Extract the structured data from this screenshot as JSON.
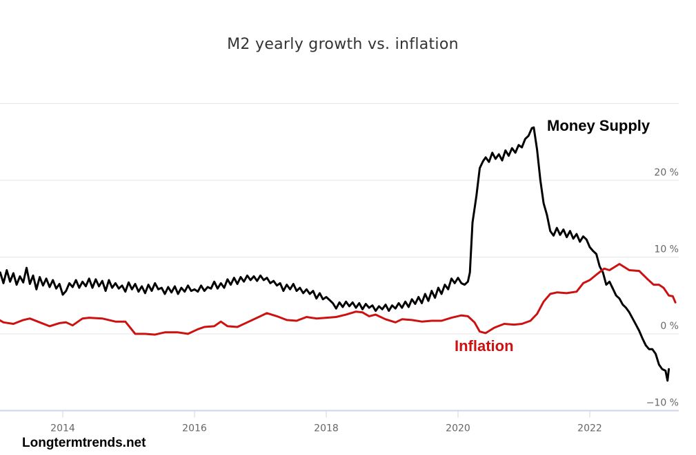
{
  "chart_data": {
    "type": "line",
    "title": "M2 yearly growth vs. inflation",
    "xlabel": "",
    "ylabel": "",
    "x_ticks": [
      "2014",
      "2016",
      "2018",
      "2020",
      "2022"
    ],
    "y_ticks": [
      "-10 %",
      "0 %",
      "10 %",
      "20 %"
    ],
    "xlim": [
      2013.0,
      2023.3
    ],
    "ylim": [
      -10,
      30
    ],
    "grid": true,
    "y_axis_side": "right",
    "annotations": [
      {
        "text": "Money Supply",
        "color": "#000000",
        "series": "Money Supply"
      },
      {
        "text": "Inflation",
        "color": "#cc1111",
        "series": "Inflation"
      }
    ],
    "credit": "Longtermtrends.net",
    "series": [
      {
        "name": "Money Supply",
        "color": "#000000",
        "points": [
          [
            2013.0,
            7.2
          ],
          [
            2013.05,
            8.0
          ],
          [
            2013.1,
            6.6
          ],
          [
            2013.15,
            8.3
          ],
          [
            2013.2,
            6.8
          ],
          [
            2013.25,
            7.9
          ],
          [
            2013.3,
            6.4
          ],
          [
            2013.35,
            7.5
          ],
          [
            2013.4,
            6.7
          ],
          [
            2013.45,
            8.6
          ],
          [
            2013.5,
            6.5
          ],
          [
            2013.55,
            7.6
          ],
          [
            2013.6,
            5.8
          ],
          [
            2013.65,
            7.4
          ],
          [
            2013.7,
            6.3
          ],
          [
            2013.75,
            7.2
          ],
          [
            2013.8,
            6.1
          ],
          [
            2013.85,
            7.0
          ],
          [
            2013.9,
            5.9
          ],
          [
            2013.95,
            6.5
          ],
          [
            2014.0,
            5.1
          ],
          [
            2014.05,
            5.6
          ],
          [
            2014.1,
            6.6
          ],
          [
            2014.15,
            6.1
          ],
          [
            2014.2,
            7.0
          ],
          [
            2014.25,
            6.0
          ],
          [
            2014.3,
            6.8
          ],
          [
            2014.35,
            6.2
          ],
          [
            2014.4,
            7.2
          ],
          [
            2014.45,
            6.0
          ],
          [
            2014.5,
            7.1
          ],
          [
            2014.55,
            6.2
          ],
          [
            2014.6,
            6.9
          ],
          [
            2014.65,
            5.6
          ],
          [
            2014.7,
            7.0
          ],
          [
            2014.75,
            6.0
          ],
          [
            2014.8,
            6.6
          ],
          [
            2014.85,
            5.9
          ],
          [
            2014.9,
            6.3
          ],
          [
            2014.95,
            5.5
          ],
          [
            2015.0,
            6.7
          ],
          [
            2015.05,
            5.8
          ],
          [
            2015.1,
            6.5
          ],
          [
            2015.15,
            5.5
          ],
          [
            2015.2,
            6.2
          ],
          [
            2015.25,
            5.3
          ],
          [
            2015.3,
            6.4
          ],
          [
            2015.35,
            5.6
          ],
          [
            2015.4,
            6.6
          ],
          [
            2015.45,
            5.8
          ],
          [
            2015.5,
            6.0
          ],
          [
            2015.55,
            5.2
          ],
          [
            2015.6,
            6.1
          ],
          [
            2015.65,
            5.4
          ],
          [
            2015.7,
            6.2
          ],
          [
            2015.75,
            5.2
          ],
          [
            2015.8,
            6.0
          ],
          [
            2015.85,
            5.5
          ],
          [
            2015.9,
            6.3
          ],
          [
            2015.95,
            5.6
          ],
          [
            2016.0,
            5.8
          ],
          [
            2016.05,
            5.5
          ],
          [
            2016.1,
            6.3
          ],
          [
            2016.15,
            5.6
          ],
          [
            2016.2,
            6.1
          ],
          [
            2016.25,
            5.9
          ],
          [
            2016.3,
            6.8
          ],
          [
            2016.35,
            5.9
          ],
          [
            2016.4,
            6.6
          ],
          [
            2016.45,
            6.0
          ],
          [
            2016.5,
            7.1
          ],
          [
            2016.55,
            6.4
          ],
          [
            2016.6,
            7.3
          ],
          [
            2016.65,
            6.5
          ],
          [
            2016.7,
            7.4
          ],
          [
            2016.75,
            6.8
          ],
          [
            2016.8,
            7.6
          ],
          [
            2016.85,
            7.0
          ],
          [
            2016.9,
            7.5
          ],
          [
            2016.95,
            6.9
          ],
          [
            2017.0,
            7.6
          ],
          [
            2017.05,
            7.0
          ],
          [
            2017.1,
            7.3
          ],
          [
            2017.15,
            6.6
          ],
          [
            2017.2,
            6.9
          ],
          [
            2017.25,
            6.3
          ],
          [
            2017.3,
            6.6
          ],
          [
            2017.35,
            5.6
          ],
          [
            2017.4,
            6.4
          ],
          [
            2017.45,
            5.8
          ],
          [
            2017.5,
            6.5
          ],
          [
            2017.55,
            5.6
          ],
          [
            2017.6,
            6.0
          ],
          [
            2017.65,
            5.3
          ],
          [
            2017.7,
            5.8
          ],
          [
            2017.75,
            5.2
          ],
          [
            2017.8,
            5.6
          ],
          [
            2017.85,
            4.6
          ],
          [
            2017.9,
            5.3
          ],
          [
            2017.95,
            4.5
          ],
          [
            2018.0,
            4.8
          ],
          [
            2018.05,
            4.4
          ],
          [
            2018.1,
            4.0
          ],
          [
            2018.15,
            3.3
          ],
          [
            2018.2,
            4.1
          ],
          [
            2018.25,
            3.5
          ],
          [
            2018.3,
            4.2
          ],
          [
            2018.35,
            3.6
          ],
          [
            2018.4,
            4.1
          ],
          [
            2018.45,
            3.4
          ],
          [
            2018.5,
            4.0
          ],
          [
            2018.55,
            3.2
          ],
          [
            2018.6,
            3.9
          ],
          [
            2018.65,
            3.4
          ],
          [
            2018.7,
            3.7
          ],
          [
            2018.75,
            3.0
          ],
          [
            2018.8,
            3.6
          ],
          [
            2018.85,
            3.2
          ],
          [
            2018.9,
            3.8
          ],
          [
            2018.95,
            3.0
          ],
          [
            2019.0,
            3.7
          ],
          [
            2019.05,
            3.3
          ],
          [
            2019.1,
            4.0
          ],
          [
            2019.15,
            3.4
          ],
          [
            2019.2,
            4.2
          ],
          [
            2019.25,
            3.5
          ],
          [
            2019.3,
            4.5
          ],
          [
            2019.35,
            3.9
          ],
          [
            2019.4,
            4.8
          ],
          [
            2019.45,
            4.0
          ],
          [
            2019.5,
            5.2
          ],
          [
            2019.55,
            4.3
          ],
          [
            2019.6,
            5.6
          ],
          [
            2019.65,
            4.7
          ],
          [
            2019.7,
            6.0
          ],
          [
            2019.75,
            5.2
          ],
          [
            2019.8,
            6.4
          ],
          [
            2019.85,
            5.8
          ],
          [
            2019.9,
            7.2
          ],
          [
            2019.95,
            6.6
          ],
          [
            2020.0,
            7.3
          ],
          [
            2020.05,
            6.6
          ],
          [
            2020.1,
            6.4
          ],
          [
            2020.15,
            6.8
          ],
          [
            2020.18,
            8.0
          ],
          [
            2020.22,
            14.5
          ],
          [
            2020.28,
            18.0
          ],
          [
            2020.33,
            21.6
          ],
          [
            2020.38,
            22.5
          ],
          [
            2020.42,
            23.0
          ],
          [
            2020.47,
            22.4
          ],
          [
            2020.52,
            23.6
          ],
          [
            2020.57,
            22.8
          ],
          [
            2020.62,
            23.4
          ],
          [
            2020.67,
            22.6
          ],
          [
            2020.72,
            23.9
          ],
          [
            2020.77,
            23.2
          ],
          [
            2020.82,
            24.2
          ],
          [
            2020.87,
            23.6
          ],
          [
            2020.92,
            24.6
          ],
          [
            2020.97,
            24.3
          ],
          [
            2021.02,
            25.4
          ],
          [
            2021.07,
            25.8
          ],
          [
            2021.12,
            26.8
          ],
          [
            2021.15,
            26.9
          ],
          [
            2021.2,
            24.0
          ],
          [
            2021.25,
            20.0
          ],
          [
            2021.3,
            17.0
          ],
          [
            2021.35,
            15.5
          ],
          [
            2021.4,
            13.4
          ],
          [
            2021.45,
            12.8
          ],
          [
            2021.5,
            13.8
          ],
          [
            2021.55,
            12.9
          ],
          [
            2021.6,
            13.6
          ],
          [
            2021.65,
            12.6
          ],
          [
            2021.7,
            13.4
          ],
          [
            2021.75,
            12.4
          ],
          [
            2021.8,
            13.0
          ],
          [
            2021.85,
            12.0
          ],
          [
            2021.9,
            12.7
          ],
          [
            2021.95,
            12.3
          ],
          [
            2022.0,
            11.3
          ],
          [
            2022.05,
            10.8
          ],
          [
            2022.1,
            10.4
          ],
          [
            2022.15,
            8.8
          ],
          [
            2022.2,
            8.0
          ],
          [
            2022.25,
            6.4
          ],
          [
            2022.3,
            6.8
          ],
          [
            2022.35,
            5.9
          ],
          [
            2022.4,
            5.0
          ],
          [
            2022.45,
            4.6
          ],
          [
            2022.5,
            3.8
          ],
          [
            2022.55,
            3.4
          ],
          [
            2022.6,
            2.8
          ],
          [
            2022.65,
            2.0
          ],
          [
            2022.7,
            1.2
          ],
          [
            2022.75,
            0.4
          ],
          [
            2022.8,
            -0.6
          ],
          [
            2022.85,
            -1.5
          ],
          [
            2022.9,
            -2.0
          ],
          [
            2022.95,
            -2.0
          ],
          [
            2023.0,
            -2.6
          ],
          [
            2023.05,
            -4.0
          ],
          [
            2023.1,
            -4.6
          ],
          [
            2023.15,
            -4.8
          ],
          [
            2023.18,
            -6.1
          ],
          [
            2023.2,
            -4.6
          ]
        ]
      },
      {
        "name": "Inflation",
        "color": "#cc1111",
        "points": [
          [
            2013.0,
            2.0
          ],
          [
            2013.1,
            1.5
          ],
          [
            2013.25,
            1.3
          ],
          [
            2013.4,
            1.8
          ],
          [
            2013.5,
            2.0
          ],
          [
            2013.65,
            1.5
          ],
          [
            2013.8,
            1.0
          ],
          [
            2013.95,
            1.4
          ],
          [
            2014.05,
            1.5
          ],
          [
            2014.15,
            1.1
          ],
          [
            2014.3,
            2.0
          ],
          [
            2014.4,
            2.1
          ],
          [
            2014.6,
            2.0
          ],
          [
            2014.8,
            1.6
          ],
          [
            2014.95,
            1.6
          ],
          [
            2015.1,
            0.0
          ],
          [
            2015.25,
            0.0
          ],
          [
            2015.4,
            -0.1
          ],
          [
            2015.55,
            0.2
          ],
          [
            2015.75,
            0.2
          ],
          [
            2015.9,
            0.0
          ],
          [
            2016.05,
            0.6
          ],
          [
            2016.15,
            0.9
          ],
          [
            2016.3,
            1.0
          ],
          [
            2016.4,
            1.6
          ],
          [
            2016.5,
            1.0
          ],
          [
            2016.65,
            0.9
          ],
          [
            2016.8,
            1.5
          ],
          [
            2016.95,
            2.1
          ],
          [
            2017.1,
            2.7
          ],
          [
            2017.25,
            2.3
          ],
          [
            2017.4,
            1.8
          ],
          [
            2017.55,
            1.7
          ],
          [
            2017.7,
            2.2
          ],
          [
            2017.85,
            2.0
          ],
          [
            2018.0,
            2.1
          ],
          [
            2018.15,
            2.2
          ],
          [
            2018.3,
            2.5
          ],
          [
            2018.45,
            2.9
          ],
          [
            2018.55,
            2.8
          ],
          [
            2018.65,
            2.3
          ],
          [
            2018.75,
            2.5
          ],
          [
            2018.9,
            1.9
          ],
          [
            2019.05,
            1.5
          ],
          [
            2019.15,
            1.9
          ],
          [
            2019.3,
            1.8
          ],
          [
            2019.45,
            1.6
          ],
          [
            2019.6,
            1.7
          ],
          [
            2019.75,
            1.7
          ],
          [
            2019.9,
            2.1
          ],
          [
            2020.05,
            2.4
          ],
          [
            2020.15,
            2.3
          ],
          [
            2020.25,
            1.5
          ],
          [
            2020.33,
            0.3
          ],
          [
            2020.42,
            0.1
          ],
          [
            2020.55,
            0.8
          ],
          [
            2020.7,
            1.3
          ],
          [
            2020.85,
            1.2
          ],
          [
            2020.97,
            1.3
          ],
          [
            2021.1,
            1.7
          ],
          [
            2021.2,
            2.6
          ],
          [
            2021.3,
            4.2
          ],
          [
            2021.4,
            5.2
          ],
          [
            2021.5,
            5.4
          ],
          [
            2021.65,
            5.3
          ],
          [
            2021.8,
            5.5
          ],
          [
            2021.9,
            6.6
          ],
          [
            2022.0,
            7.0
          ],
          [
            2022.1,
            7.7
          ],
          [
            2022.22,
            8.5
          ],
          [
            2022.3,
            8.3
          ],
          [
            2022.45,
            9.1
          ],
          [
            2022.6,
            8.3
          ],
          [
            2022.75,
            8.2
          ],
          [
            2022.88,
            7.1
          ],
          [
            2022.97,
            6.4
          ],
          [
            2023.05,
            6.4
          ],
          [
            2023.12,
            6.0
          ],
          [
            2023.2,
            5.0
          ],
          [
            2023.26,
            4.9
          ],
          [
            2023.3,
            4.1
          ]
        ]
      }
    ]
  }
}
